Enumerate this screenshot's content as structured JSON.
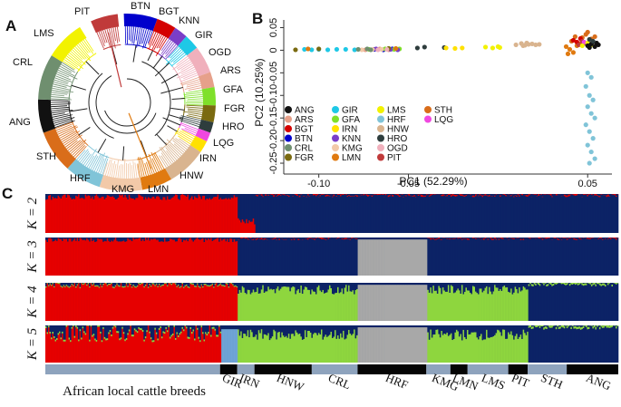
{
  "panels": {
    "a": "A",
    "b": "B",
    "c": "C"
  },
  "colors": {
    "ANG": "#111111",
    "ARS": "#e6a08a",
    "BGT": "#d40000",
    "BTN": "#0000cc",
    "CRL": "#6f8f6f",
    "FGR": "#7a6a10",
    "GIR": "#1ec8e6",
    "GFA": "#7fe02a",
    "IRN": "#ffe100",
    "KNN": "#7a3ec8",
    "KMG": "#f2c9a8",
    "LMN": "#e07a10",
    "LMS": "#f2f200",
    "HRF": "#80c4d8",
    "HNW": "#d9b48f",
    "HRO": "#2e3d3d",
    "OGD": "#f0b0bc",
    "PIT": "#c03a3a",
    "STH": "#d96d1a",
    "LQG": "#f048e0",
    "red": "#e60000",
    "navy": "#0c2366",
    "green": "#8ed63e",
    "grey": "#a8a8a8",
    "lightblue": "#6fa4d6",
    "strip_light": "#8ea3bd",
    "strip_dark": "#050505"
  },
  "tree": {
    "labels": [
      {
        "name": "PIT",
        "text": "PIT"
      },
      {
        "name": "BTN",
        "text": "BTN"
      },
      {
        "name": "BGT",
        "text": "BGT"
      },
      {
        "name": "KNN",
        "text": "KNN"
      },
      {
        "name": "GIR",
        "text": "GIR"
      },
      {
        "name": "OGD",
        "text": "OGD"
      },
      {
        "name": "ARS",
        "text": "ARS"
      },
      {
        "name": "GFA",
        "text": "GFA"
      },
      {
        "name": "FGR",
        "text": "FGR"
      },
      {
        "name": "HRO",
        "text": "HRO"
      },
      {
        "name": "LQG",
        "text": "LQG"
      },
      {
        "name": "IRN",
        "text": "IRN"
      },
      {
        "name": "HNW",
        "text": "HNW"
      },
      {
        "name": "LMN",
        "text": "LMN"
      },
      {
        "name": "KMG",
        "text": "KMG"
      },
      {
        "name": "HRF",
        "text": "HRF"
      },
      {
        "name": "STH",
        "text": "STH"
      },
      {
        "name": "ANG",
        "text": "ANG"
      },
      {
        "name": "CRL",
        "text": "CRL"
      },
      {
        "name": "LMS",
        "text": "LMS"
      }
    ]
  },
  "chart_data": [
    {
      "type": "scatter",
      "xlabel": "PC1 (52.29%)",
      "ylabel": "PC2 (10.25%)",
      "xlim": [
        -0.115,
        0.06
      ],
      "ylim": [
        -0.27,
        0.055
      ],
      "xticks": [
        "-0.10",
        "-0.05",
        "0.05"
      ],
      "xtick_values": [
        -0.1,
        -0.05,
        0.05
      ],
      "yticks": [
        "0.05",
        "0",
        "-0.05",
        "-0.10",
        "-0.15",
        "-0.20",
        "-0.25"
      ],
      "ytick_values": [
        0.05,
        0,
        -0.05,
        -0.1,
        -0.15,
        -0.2,
        -0.25
      ],
      "legend": [
        "ANG",
        "ARS",
        "BGT",
        "BTN",
        "CRL",
        "FGR",
        "GIR",
        "GFA",
        "IRN",
        "KNN",
        "KMG",
        "LMN",
        "LMS",
        "HRF",
        "HNW",
        "HRO",
        "OGD",
        "PIT",
        "STH",
        "LQG"
      ],
      "series": [
        {
          "name": "GIR",
          "points": [
            [
              -0.108,
              0.002
            ],
            [
              -0.104,
              0.001
            ],
            [
              -0.1,
              0.002
            ],
            [
              -0.095,
              0.001
            ],
            [
              -0.09,
              0.002
            ],
            [
              -0.085,
              0.002
            ],
            [
              -0.08,
              0.001
            ]
          ]
        },
        {
          "name": "BTN",
          "points": [
            [
              -0.069,
              0.002
            ],
            [
              -0.064,
              0.001
            ],
            [
              -0.059,
              0.003
            ]
          ]
        },
        {
          "name": "ARS",
          "points": [
            [
              -0.074,
              0.001
            ],
            [
              -0.066,
              0.003
            ],
            [
              -0.061,
              0.001
            ]
          ]
        },
        {
          "name": "GFA",
          "points": [
            [
              -0.072,
              0.002
            ],
            [
              -0.063,
              0.003
            ],
            [
              -0.058,
              0.002
            ],
            [
              -0.055,
              0.003
            ]
          ]
        },
        {
          "name": "KNN",
          "points": [
            [
              -0.068,
              0.003
            ],
            [
              -0.06,
              0.002
            ],
            [
              -0.056,
              0.001
            ]
          ]
        },
        {
          "name": "FGR",
          "points": [
            [
              -0.113,
              0.001
            ],
            [
              -0.1,
              0.003
            ],
            [
              -0.061,
              0.004
            ]
          ]
        },
        {
          "name": "KMG",
          "points": [
            [
              -0.076,
              0.001
            ],
            [
              -0.07,
              0.002
            ],
            [
              -0.065,
              0.002
            ]
          ]
        },
        {
          "name": "CRL",
          "points": [
            [
              -0.078,
              0.002
            ],
            [
              -0.073,
              0.003
            ],
            [
              -0.071,
              0.001
            ]
          ]
        },
        {
          "name": "OGD",
          "points": [
            [
              -0.067,
              0.001
            ],
            [
              -0.062,
              0.002
            ]
          ]
        },
        {
          "name": "LMN",
          "points": [
            [
              -0.106,
              0.003
            ],
            [
              -0.057,
              0.004
            ]
          ]
        },
        {
          "name": "HRO",
          "points": [
            [
              -0.045,
              0.005
            ],
            [
              -0.041,
              0.007
            ],
            [
              -0.03,
              0.006
            ]
          ]
        },
        {
          "name": "IRN",
          "points": [
            [
              -0.029,
              0.005
            ],
            [
              -0.024,
              0.004
            ],
            [
              -0.02,
              0.005
            ]
          ]
        },
        {
          "name": "LMS",
          "points": [
            [
              -0.007,
              0.007
            ],
            [
              -0.003,
              0.005
            ],
            [
              0.0,
              0.008
            ],
            [
              0.001,
              0.006
            ]
          ]
        },
        {
          "name": "HNW",
          "points": [
            [
              0.01,
              0.012
            ],
            [
              0.013,
              0.015
            ],
            [
              0.015,
              0.011
            ],
            [
              0.017,
              0.013
            ],
            [
              0.019,
              0.014
            ],
            [
              0.021,
              0.012
            ],
            [
              0.023,
              0.013
            ],
            [
              0.016,
              0.016
            ],
            [
              0.014,
              0.01
            ]
          ]
        },
        {
          "name": "HRF",
          "points": [
            [
              0.05,
              -0.05
            ],
            [
              0.052,
              -0.06
            ],
            [
              0.049,
              -0.08
            ],
            [
              0.051,
              -0.1
            ],
            [
              0.053,
              -0.11
            ],
            [
              0.05,
              -0.125
            ],
            [
              0.052,
              -0.14
            ],
            [
              0.054,
              -0.15
            ],
            [
              0.049,
              -0.165
            ],
            [
              0.051,
              -0.18
            ],
            [
              0.053,
              -0.195
            ],
            [
              0.05,
              -0.21
            ],
            [
              0.052,
              -0.225
            ],
            [
              0.054,
              -0.24
            ],
            [
              0.051,
              -0.25
            ]
          ]
        },
        {
          "name": "STH",
          "points": [
            [
              0.041,
              0.02
            ],
            [
              0.043,
              0.03
            ],
            [
              0.046,
              0.015
            ],
            [
              0.049,
              0.035
            ],
            [
              0.052,
              0.025
            ],
            [
              0.054,
              0.03
            ],
            [
              0.05,
              0.04
            ],
            [
              0.047,
              0.028
            ]
          ]
        },
        {
          "name": "LMN",
          "points": [
            [
              0.038,
              0.008
            ],
            [
              0.04,
              0.002
            ],
            [
              0.042,
              -0.005
            ],
            [
              0.044,
              0.01
            ],
            [
              0.039,
              -0.008
            ]
          ]
        },
        {
          "name": "BGT",
          "points": [
            [
              0.042,
              0.022
            ],
            [
              0.044,
              0.018
            ],
            [
              0.046,
              0.026
            ]
          ]
        },
        {
          "name": "PIT",
          "points": [
            [
              0.045,
              0.012
            ],
            [
              0.047,
              0.02
            ],
            [
              0.049,
              0.015
            ]
          ]
        },
        {
          "name": "LQG",
          "points": [
            [
              0.048,
              0.018
            ]
          ]
        },
        {
          "name": "LMS",
          "points": [
            [
              0.047,
              0.01
            ],
            [
              0.05,
              0.016
            ],
            [
              0.052,
              0.012
            ]
          ]
        },
        {
          "name": "ANG",
          "points": [
            [
              0.05,
              0.01
            ],
            [
              0.052,
              0.014
            ],
            [
              0.054,
              0.008
            ],
            [
              0.056,
              0.012
            ],
            [
              0.053,
              0.018
            ],
            [
              0.055,
              0.016
            ],
            [
              0.051,
              0.006
            ]
          ]
        },
        {
          "name": "HRO",
          "points": [
            [
              0.053,
              0.02
            ],
            [
              0.051,
              0.024
            ]
          ]
        }
      ]
    },
    {
      "type": "stacked-bar",
      "title": "",
      "rows": [
        {
          "k": "K = 2",
          "components": [
            "red",
            "navy"
          ]
        },
        {
          "k": "K = 3",
          "components": [
            "red",
            "navy",
            "grey"
          ]
        },
        {
          "k": "K = 4",
          "components": [
            "red",
            "navy",
            "green",
            "grey"
          ]
        },
        {
          "k": "K = 5",
          "components": [
            "red",
            "navy",
            "green",
            "grey",
            "lightblue"
          ]
        }
      ],
      "x_groups": [
        {
          "text": "African local cattle breeds",
          "start": 0,
          "end": 0.305
        },
        {
          "text": "GIR",
          "start": 0.305,
          "end": 0.335
        },
        {
          "text": "IRN",
          "start": 0.335,
          "end": 0.365
        },
        {
          "text": "HNW",
          "start": 0.365,
          "end": 0.465
        },
        {
          "text": "CRL",
          "start": 0.465,
          "end": 0.545
        },
        {
          "text": "HRF",
          "start": 0.545,
          "end": 0.665
        },
        {
          "text": "KMG",
          "start": 0.665,
          "end": 0.707
        },
        {
          "text": "LMN",
          "start": 0.707,
          "end": 0.737
        },
        {
          "text": "LMS",
          "start": 0.737,
          "end": 0.808
        },
        {
          "text": "PIT",
          "start": 0.808,
          "end": 0.842
        },
        {
          "text": "STH",
          "start": 0.842,
          "end": 0.91
        },
        {
          "text": "ANG",
          "start": 0.91,
          "end": 1.0
        }
      ]
    }
  ]
}
